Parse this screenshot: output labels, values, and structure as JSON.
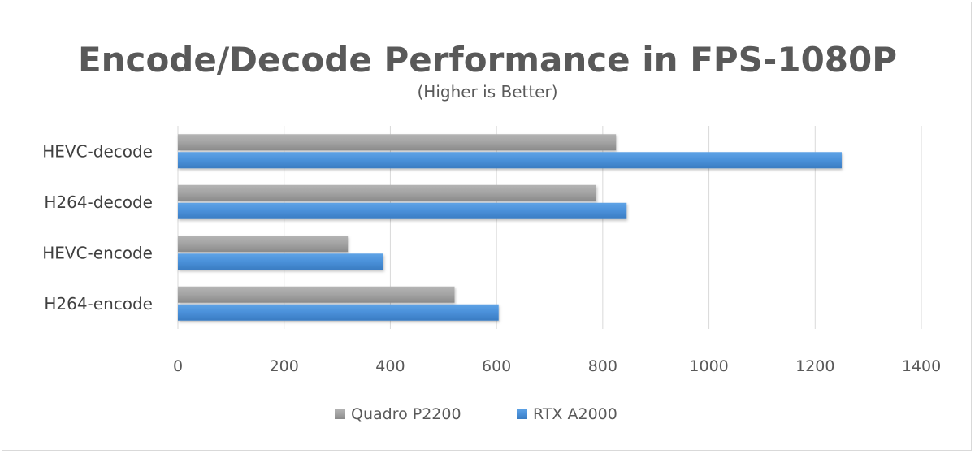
{
  "chart_data": {
    "type": "bar",
    "orientation": "horizontal",
    "title": "Encode/Decode Performance in FPS-1080P",
    "subtitle": "(Higher is Better)",
    "xlabel": "",
    "ylabel": "",
    "categories": [
      "HEVC-decode",
      "H264-decode",
      "HEVC-encode",
      "H264-encode"
    ],
    "series": [
      {
        "name": "Quadro P2200",
        "color": "#a0a0a0",
        "values": [
          825,
          788,
          320,
          521
        ]
      },
      {
        "name": "RTX A2000",
        "color": "#4a90d9",
        "values": [
          1250,
          845,
          387,
          604
        ]
      }
    ],
    "xlim": [
      0,
      1400
    ],
    "xticks": [
      "0",
      "200",
      "400",
      "600",
      "800",
      "1000",
      "1200",
      "1400"
    ],
    "grid": true,
    "legend": "bottom"
  }
}
